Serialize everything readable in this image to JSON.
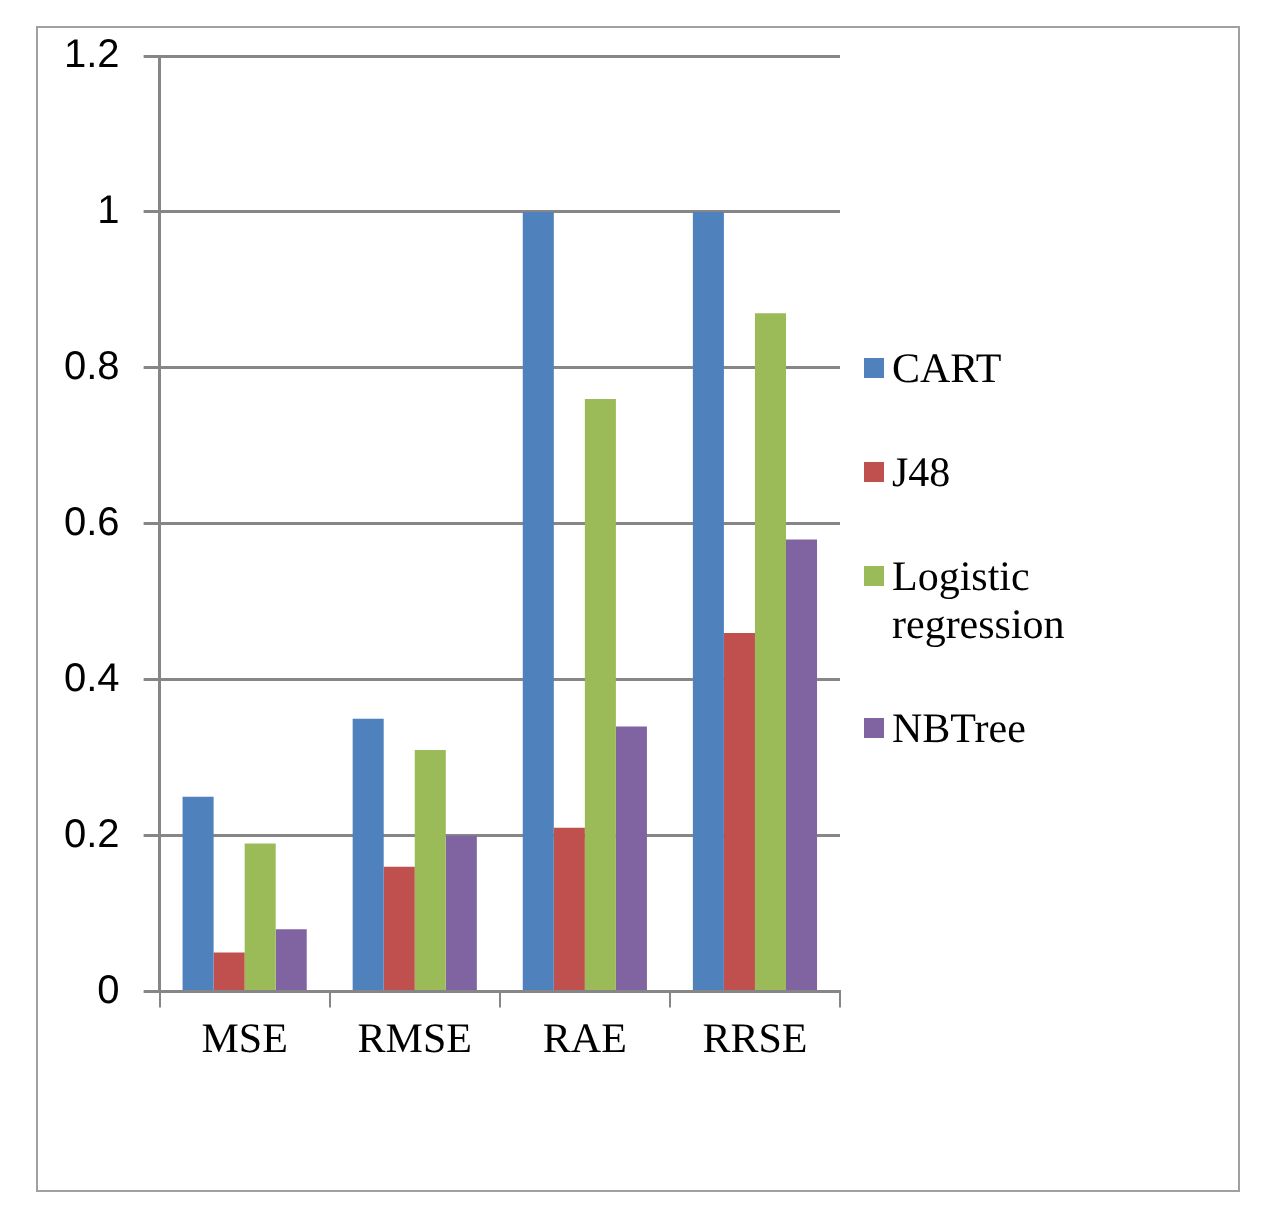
{
  "chart_data": {
    "type": "bar",
    "categories": [
      "MSE",
      "RMSE",
      "RAE",
      "RRSE"
    ],
    "series": [
      {
        "name": "CART",
        "color": "#4f81bd",
        "values": [
          0.25,
          0.35,
          1,
          1
        ]
      },
      {
        "name": "J48",
        "color": "#c0504d",
        "values": [
          0.05,
          0.16,
          0.21,
          0.46
        ]
      },
      {
        "name": "Logistic regression",
        "color": "#9bbb59",
        "values": [
          0.19,
          0.31,
          0.76,
          0.87
        ]
      },
      {
        "name": "NBTree",
        "color": "#8064a2",
        "values": [
          0.08,
          0.2,
          0.34,
          0.58
        ]
      }
    ],
    "ylim": [
      0,
      1.2
    ],
    "yticks": [
      0,
      0.2,
      0.4,
      0.6,
      0.8,
      1,
      1.2
    ],
    "grid": "y",
    "legend": "right"
  }
}
